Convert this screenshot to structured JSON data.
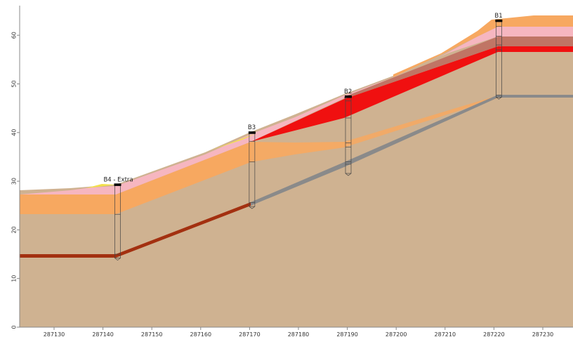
{
  "colors": {
    "background": "#ffffff",
    "base_tan": "#cfb291",
    "orange": "#f7a860",
    "pink": "#f6b6c0",
    "red": "#f01010",
    "brown_red": "#a33010",
    "rose_brown": "#c07565",
    "gray_layer": "#8a8a8a",
    "yellow": "#f3e04a",
    "axis": "#888888"
  },
  "x_axis": {
    "ticks": [
      {
        "value": 287130,
        "label": "287130"
      },
      {
        "value": 287140,
        "label": "287140"
      },
      {
        "value": 287150,
        "label": "287150"
      },
      {
        "value": 287160,
        "label": "287160"
      },
      {
        "value": 287170,
        "label": "287170"
      },
      {
        "value": 287180,
        "label": "287180"
      },
      {
        "value": 287190,
        "label": "287190"
      },
      {
        "value": 287200,
        "label": "287200"
      },
      {
        "value": 287210,
        "label": "287210"
      },
      {
        "value": 287220,
        "label": "287220"
      },
      {
        "value": 287230,
        "label": "287230"
      }
    ]
  },
  "y_axis": {
    "ticks": [
      {
        "value": 0,
        "label": "0"
      },
      {
        "value": 10,
        "label": "10"
      },
      {
        "value": 20,
        "label": "20"
      },
      {
        "value": 30,
        "label": "30"
      },
      {
        "value": 40,
        "label": "40"
      },
      {
        "value": 50,
        "label": "50"
      },
      {
        "value": 60,
        "label": "60"
      }
    ]
  },
  "boreholes": [
    {
      "id": "B4",
      "label": "B4 - Extra",
      "x": 287143,
      "top": 29.1,
      "bottom": 14.2,
      "marks": [
        23.2,
        15.0
      ]
    },
    {
      "id": "B3",
      "label": "B3",
      "x": 287170.5,
      "top": 39.8,
      "bottom": 24.8,
      "marks": [
        38.2,
        34.0,
        25.6
      ]
    },
    {
      "id": "B2",
      "label": "B2",
      "x": 287190.2,
      "top": 47.2,
      "bottom": 31.6,
      "marks": [
        46.5,
        43.0,
        37.9,
        37.0,
        34.0,
        33.5
      ]
    },
    {
      "id": "B1",
      "label": "B1",
      "x": 287221,
      "top": 62.8,
      "bottom": 47.3,
      "marks": [
        61.8,
        59.8,
        58.0,
        57.0,
        47.7
      ]
    }
  ]
}
